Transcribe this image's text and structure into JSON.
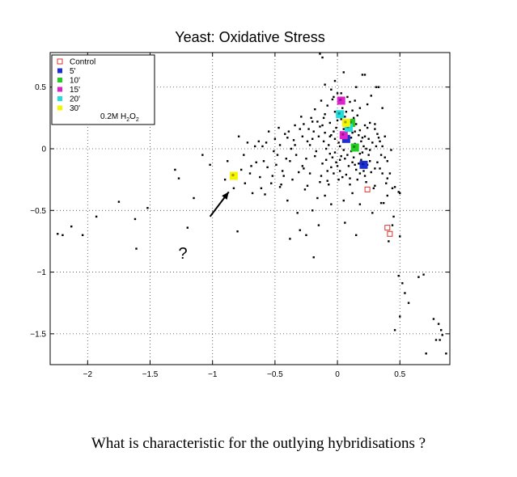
{
  "caption": "What is characteristic for the outlying hybridisations ?",
  "chart_data": {
    "type": "scatter",
    "title": "Yeast: Oxidative Stress",
    "xlim": [
      -2.3,
      0.9
    ],
    "ylim": [
      -1.75,
      0.78
    ],
    "x_ticks": [
      -2,
      -1.5,
      -1,
      -0.5,
      0,
      0.5
    ],
    "y_ticks": [
      -1.5,
      -1,
      -0.5,
      0,
      0.5
    ],
    "x_tick_labels": [
      "−2",
      "−1.5",
      "−1",
      "−0.5",
      "0",
      "0.5"
    ],
    "y_tick_labels": [
      "−1.5",
      "−1",
      "−0.5",
      "0",
      "0.5"
    ],
    "grid": true,
    "legend_position": "top-left",
    "legend_note": "0.2M H",
    "legend_note_sub1": "2",
    "legend_note_mid": "O",
    "legend_note_sub2": "2",
    "annotation": {
      "text": "?",
      "arrow_from": [
        -1.02,
        -0.55
      ],
      "arrow_to": [
        -0.87,
        -0.35
      ]
    },
    "genes": {
      "name": "",
      "color": "#000000",
      "points": [
        [
          -2.24,
          -0.69
        ],
        [
          -2.2,
          -0.7
        ],
        [
          -2.13,
          -0.63
        ],
        [
          -2.04,
          -0.7
        ],
        [
          -1.93,
          -0.55
        ],
        [
          -1.75,
          -0.43
        ],
        [
          -1.62,
          -0.57
        ],
        [
          -1.61,
          -0.81
        ],
        [
          -1.52,
          -0.48
        ],
        [
          -1.3,
          -0.17
        ],
        [
          -1.27,
          -0.24
        ],
        [
          -1.2,
          -0.64
        ],
        [
          -1.15,
          -0.4
        ],
        [
          -1.08,
          -0.05
        ],
        [
          -1.02,
          -0.13
        ],
        [
          -0.9,
          -0.25
        ],
        [
          -0.88,
          -0.1
        ],
        [
          -0.83,
          -0.32
        ],
        [
          -0.8,
          -0.67
        ],
        [
          -0.77,
          -0.17
        ],
        [
          -0.74,
          -0.28
        ],
        [
          -0.72,
          0.05
        ],
        [
          -0.7,
          -0.2
        ],
        [
          -0.68,
          -0.36
        ],
        [
          -0.65,
          -0.11
        ],
        [
          -0.62,
          -0.23
        ],
        [
          -0.6,
          0.02
        ],
        [
          -0.58,
          -0.37
        ],
        [
          -0.56,
          -0.15
        ],
        [
          -0.53,
          -0.28
        ],
        [
          -0.5,
          0.08
        ],
        [
          -0.48,
          -0.05
        ],
        [
          -0.46,
          -0.31
        ],
        [
          -0.44,
          -0.18
        ],
        [
          -0.42,
          0.12
        ],
        [
          -0.4,
          -0.42
        ],
        [
          -0.38,
          -0.1
        ],
        [
          -0.36,
          -0.25
        ],
        [
          -0.34,
          0.03
        ],
        [
          -0.32,
          -0.52
        ],
        [
          -0.3,
          0.16
        ],
        [
          -0.28,
          -0.14
        ],
        [
          -0.26,
          -0.33
        ],
        [
          -0.24,
          0.06
        ],
        [
          -0.22,
          -0.2
        ],
        [
          -0.2,
          0.22
        ],
        [
          -0.18,
          -0.06
        ],
        [
          -0.16,
          -0.4
        ],
        [
          -0.14,
          0.18
        ],
        [
          -0.12,
          -0.12
        ],
        [
          -0.1,
          0.28
        ],
        [
          -0.08,
          -0.26
        ],
        [
          -0.06,
          0.1
        ],
        [
          -0.04,
          0.4
        ],
        [
          -0.02,
          -0.03
        ],
        [
          0.0,
          0.23
        ],
        [
          0.02,
          -0.18
        ],
        [
          0.04,
          0.33
        ],
        [
          0.06,
          -0.08
        ],
        [
          0.08,
          0.2
        ],
        [
          0.1,
          -0.29
        ],
        [
          0.12,
          0.13
        ],
        [
          0.14,
          -0.13
        ],
        [
          0.16,
          0.27
        ],
        [
          0.18,
          -0.04
        ],
        [
          0.2,
          0.09
        ],
        [
          0.22,
          -0.22
        ],
        [
          0.24,
          0.17
        ],
        [
          0.26,
          -0.1
        ],
        [
          0.28,
          0.05
        ],
        [
          0.3,
          -0.3
        ],
        [
          0.32,
          0.12
        ],
        [
          0.34,
          -0.16
        ],
        [
          0.36,
          0.02
        ],
        [
          0.38,
          -0.07
        ],
        [
          0.4,
          -0.24
        ],
        [
          0.43,
          -0.01
        ],
        [
          0.46,
          -0.31
        ],
        [
          0.49,
          -0.35
        ],
        [
          -0.15,
          0.1
        ],
        [
          -0.12,
          0.19
        ],
        [
          -0.09,
          -0.09
        ],
        [
          -0.07,
          0.03
        ],
        [
          -0.05,
          -0.15
        ],
        [
          -0.03,
          0.14
        ],
        [
          -0.01,
          -0.11
        ],
        [
          0.01,
          0.05
        ],
        [
          0.03,
          -0.06
        ],
        [
          0.05,
          0.16
        ],
        [
          0.07,
          -0.21
        ],
        [
          0.09,
          0.07
        ],
        [
          0.11,
          -0.02
        ],
        [
          0.13,
          0.25
        ],
        [
          0.15,
          -0.17
        ],
        [
          0.17,
          0.11
        ],
        [
          0.19,
          -0.09
        ],
        [
          0.21,
          0.02
        ],
        [
          0.23,
          -0.27
        ],
        [
          0.25,
          0.08
        ],
        [
          0.27,
          -0.19
        ],
        [
          -0.17,
          -0.02
        ],
        [
          -0.11,
          0.06
        ],
        [
          -0.08,
          -0.18
        ],
        [
          -0.06,
          0.21
        ],
        [
          -0.04,
          -0.07
        ],
        [
          -0.02,
          0.08
        ],
        [
          0.0,
          -0.14
        ],
        [
          0.02,
          0.02
        ],
        [
          0.04,
          -0.23
        ],
        [
          0.06,
          0.12
        ],
        [
          0.08,
          -0.05
        ],
        [
          0.1,
          0.18
        ],
        [
          0.12,
          -0.11
        ],
        [
          0.14,
          0.04
        ],
        [
          0.16,
          -0.25
        ],
        [
          0.18,
          0.15
        ],
        [
          0.2,
          -0.03
        ],
        [
          0.22,
          0.1
        ],
        [
          0.24,
          -0.13
        ],
        [
          0.26,
          0.21
        ],
        [
          -0.13,
          -0.22
        ],
        [
          -0.11,
          0.25
        ],
        [
          -0.09,
          0.0
        ],
        [
          -0.07,
          -0.29
        ],
        [
          -0.05,
          0.11
        ],
        [
          -0.03,
          -0.2
        ],
        [
          -0.01,
          0.17
        ],
        [
          0.01,
          -0.25
        ],
        [
          0.03,
          0.24
        ],
        [
          0.05,
          -0.01
        ],
        [
          0.07,
          0.3
        ],
        [
          0.09,
          -0.14
        ],
        [
          0.11,
          0.09
        ],
        [
          0.13,
          -0.07
        ],
        [
          0.15,
          0.2
        ],
        [
          0.17,
          -0.12
        ],
        [
          0.19,
          0.06
        ],
        [
          0.21,
          -0.18
        ],
        [
          0.23,
          0.0
        ],
        [
          0.25,
          -0.05
        ],
        [
          -0.19,
          0.14
        ],
        [
          -0.14,
          -0.27
        ],
        [
          -0.1,
          0.13
        ],
        [
          -0.06,
          -0.04
        ],
        [
          -0.02,
          0.3
        ],
        [
          0.02,
          -0.09
        ],
        [
          0.06,
          0.26
        ],
        [
          0.1,
          -0.24
        ],
        [
          0.14,
          0.14
        ],
        [
          0.18,
          -0.2
        ],
        [
          0.22,
          0.19
        ],
        [
          0.26,
          -0.01
        ],
        [
          0.3,
          0.16
        ],
        [
          0.34,
          0.06
        ],
        [
          0.32,
          -0.11
        ],
        [
          -0.22,
          0.03
        ],
        [
          -0.25,
          -0.08
        ],
        [
          -0.28,
          0.1
        ],
        [
          -0.31,
          -0.19
        ],
        [
          -0.34,
          0.19
        ],
        [
          -0.37,
          0.0
        ],
        [
          -0.4,
          0.09
        ],
        [
          -0.43,
          -0.22
        ],
        [
          -0.46,
          0.03
        ],
        [
          -0.49,
          -0.13
        ],
        [
          -0.21,
          0.25
        ],
        [
          -0.24,
          -0.3
        ],
        [
          -0.27,
          0.2
        ],
        [
          -0.33,
          -0.05
        ],
        [
          -0.39,
          0.14
        ],
        [
          -0.45,
          -0.29
        ],
        [
          -0.51,
          -0.02
        ],
        [
          -0.55,
          0.14
        ],
        [
          -0.59,
          -0.1
        ],
        [
          -0.63,
          0.06
        ],
        [
          -0.05,
          0.48
        ],
        [
          0.03,
          0.45
        ],
        [
          0.1,
          0.38
        ],
        [
          0.15,
          0.5
        ],
        [
          0.2,
          0.6
        ],
        [
          0.27,
          0.43
        ],
        [
          0.31,
          0.5
        ],
        [
          0.36,
          0.33
        ],
        [
          -0.1,
          0.52
        ],
        [
          -0.02,
          0.55
        ],
        [
          0.05,
          0.62
        ],
        [
          0.12,
          0.31
        ],
        [
          0.24,
          0.36
        ],
        [
          -0.13,
          0.39
        ],
        [
          -0.18,
          0.32
        ],
        [
          -0.14,
          0.77
        ],
        [
          -0.12,
          0.74
        ],
        [
          0.22,
          0.6
        ],
        [
          0.33,
          0.5
        ],
        [
          0.3,
          0.2
        ],
        [
          -0.2,
          -0.5
        ],
        [
          -0.1,
          -0.38
        ],
        [
          -0.05,
          -0.45
        ],
        [
          0.05,
          -0.42
        ],
        [
          0.12,
          -0.36
        ],
        [
          0.18,
          -0.45
        ],
        [
          0.28,
          -0.52
        ],
        [
          0.35,
          -0.44
        ],
        [
          0.4,
          -0.38
        ],
        [
          0.45,
          -0.55
        ],
        [
          -0.15,
          -0.62
        ],
        [
          -0.25,
          -0.7
        ],
        [
          0.06,
          -0.6
        ],
        [
          -0.38,
          -0.73
        ],
        [
          -0.19,
          -0.88
        ],
        [
          0.15,
          -0.7
        ],
        [
          0.44,
          -0.62
        ],
        [
          0.41,
          -0.75
        ],
        [
          0.37,
          -0.44
        ],
        [
          0.29,
          -0.32
        ],
        [
          -0.3,
          -0.66
        ],
        [
          0.5,
          -0.71
        ],
        [
          0.49,
          -1.03
        ],
        [
          0.52,
          -1.09
        ],
        [
          0.54,
          -1.17
        ],
        [
          0.57,
          -1.25
        ],
        [
          0.5,
          -1.36
        ],
        [
          0.46,
          -1.47
        ],
        [
          0.65,
          -1.04
        ],
        [
          0.69,
          -1.02
        ],
        [
          0.77,
          -1.38
        ],
        [
          0.81,
          -1.42
        ],
        [
          0.83,
          -1.47
        ],
        [
          0.82,
          -1.55
        ],
        [
          0.79,
          -1.55
        ],
        [
          0.84,
          -1.51
        ],
        [
          0.87,
          -1.66
        ],
        [
          0.71,
          -1.66
        ],
        [
          0.35,
          -0.05
        ],
        [
          0.33,
          0.09
        ],
        [
          0.3,
          -0.16
        ],
        [
          0.39,
          -0.28
        ],
        [
          0.44,
          -0.32
        ],
        [
          0.42,
          -0.2
        ],
        [
          0.4,
          -0.1
        ],
        [
          0.5,
          -0.36
        ],
        [
          0.38,
          0.1
        ],
        [
          0.36,
          -0.2
        ],
        [
          0.31,
          0.02
        ],
        [
          -0.08,
          0.35
        ],
        [
          -0.03,
          0.42
        ],
        [
          0.0,
          0.45
        ],
        [
          0.08,
          0.42
        ],
        [
          0.14,
          0.39
        ],
        [
          0.18,
          0.33
        ],
        [
          -0.16,
          0.22
        ],
        [
          -0.2,
          0.08
        ],
        [
          -0.23,
          0.16
        ],
        [
          -0.27,
          -0.16
        ],
        [
          -0.29,
          0.26
        ],
        [
          -0.35,
          0.07
        ],
        [
          -0.41,
          -0.08
        ],
        [
          -0.47,
          0.17
        ],
        [
          -0.52,
          -0.22
        ],
        [
          -0.57,
          0.05
        ],
        [
          -0.61,
          -0.32
        ],
        [
          -0.66,
          0.02
        ],
        [
          -0.69,
          -0.14
        ],
        [
          -0.75,
          -0.05
        ],
        [
          -0.79,
          0.1
        ]
      ]
    },
    "series": [
      {
        "name": "Control",
        "marker": "open-square",
        "color": "#d9342b",
        "points": [
          [
            0.24,
            -0.33
          ],
          [
            0.4,
            -0.64
          ],
          [
            0.42,
            -0.69
          ]
        ]
      },
      {
        "name": "5'",
        "marker": "filled-square",
        "color": "#1a2fd6",
        "points": [
          [
            0.07,
            0.08
          ],
          [
            0.21,
            -0.13
          ]
        ]
      },
      {
        "name": "10'",
        "marker": "filled-square",
        "color": "#22cc22",
        "points": [
          [
            0.11,
            0.21
          ],
          [
            0.14,
            0.01
          ]
        ]
      },
      {
        "name": "15'",
        "marker": "filled-square",
        "color": "#dd22cc",
        "points": [
          [
            0.03,
            0.39
          ],
          [
            0.05,
            0.11
          ]
        ]
      },
      {
        "name": "20'",
        "marker": "filled-square",
        "color": "#22dddd",
        "points": [
          [
            0.02,
            0.28
          ],
          [
            0.09,
            0.17
          ]
        ]
      },
      {
        "name": "30'",
        "marker": "filled-square",
        "color": "#f5f500",
        "points": [
          [
            0.07,
            0.21
          ],
          [
            -0.83,
            -0.22
          ]
        ]
      }
    ]
  }
}
